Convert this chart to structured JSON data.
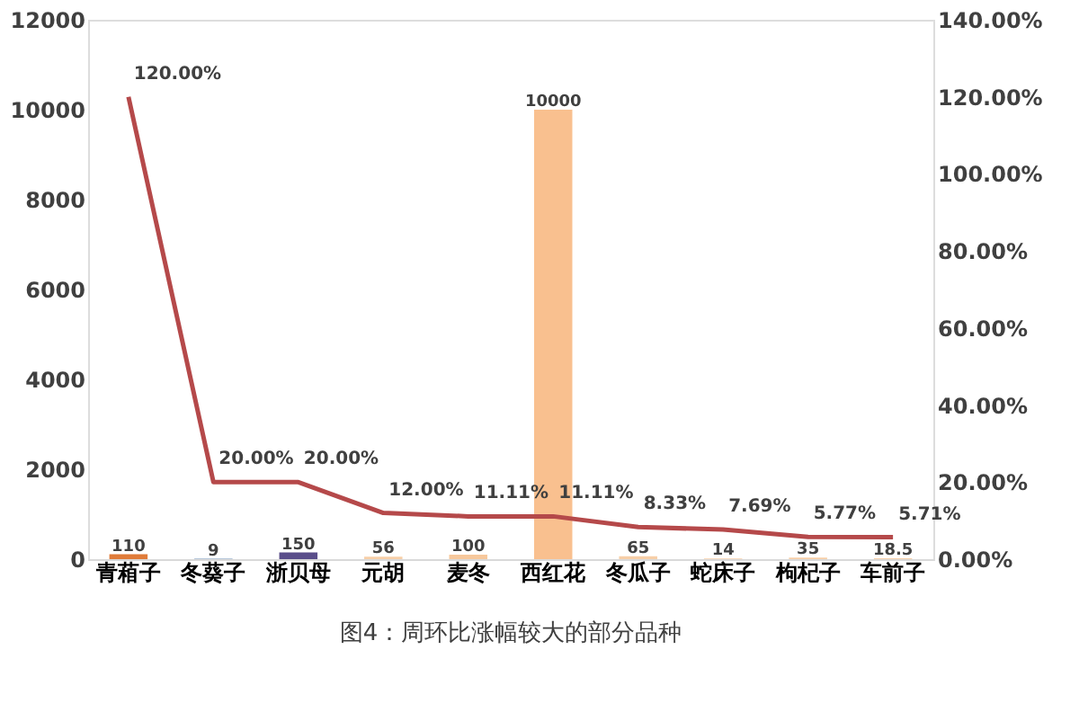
{
  "chart_data": {
    "type": "bar",
    "categories": [
      "青葙子",
      "冬葵子",
      "浙贝母",
      "元胡",
      "麦冬",
      "西红花",
      "冬瓜子",
      "蛇床子",
      "枸杞子",
      "车前子"
    ],
    "series": [
      {
        "colors": [
          "#e07b39",
          "#6f8fb5",
          "#5a4e8a",
          "#f7cfa8",
          "#f7c89c",
          "#f9c08f",
          "#f7cfa8",
          "#f7cfa8",
          "#f7cfa8",
          "#f7cfa8"
        ],
        "values": [
          110,
          9,
          150,
          56,
          100,
          10000,
          65,
          14,
          35,
          18.5
        ],
        "value_labels": [
          "110",
          "9",
          "150",
          "56",
          "100",
          "10000",
          "65",
          "14",
          "35",
          "18.5"
        ]
      },
      {
        "type": "line",
        "axis": "y2",
        "color": "#b5494a",
        "values": [
          120,
          20,
          20,
          12,
          11.11,
          11.11,
          8.33,
          7.69,
          5.77,
          5.71
        ],
        "value_labels": [
          "120.00%",
          "20.00%",
          "20.00%",
          "12.00%",
          "11.11%",
          "11.11%",
          "8.33%",
          "7.69%",
          "5.77%",
          "5.71%"
        ]
      }
    ],
    "ylim": [
      0,
      12000
    ],
    "yticks": [
      0,
      2000,
      4000,
      6000,
      8000,
      10000,
      12000
    ],
    "y2lim": [
      0,
      140
    ],
    "y2ticks": [
      {
        "value": 0,
        "label": "0.00%"
      },
      {
        "value": 20,
        "label": "20.00%"
      },
      {
        "value": 40,
        "label": "40.00%"
      },
      {
        "value": 60,
        "label": "60.00%"
      },
      {
        "value": 80,
        "label": "80.00%"
      },
      {
        "value": 100,
        "label": "100.00%"
      },
      {
        "value": 120,
        "label": "120.00%"
      },
      {
        "value": 140,
        "label": "140.00%"
      }
    ],
    "grid": false,
    "annotations": [
      "图4：周环比涨幅较大的部分品种"
    ]
  }
}
